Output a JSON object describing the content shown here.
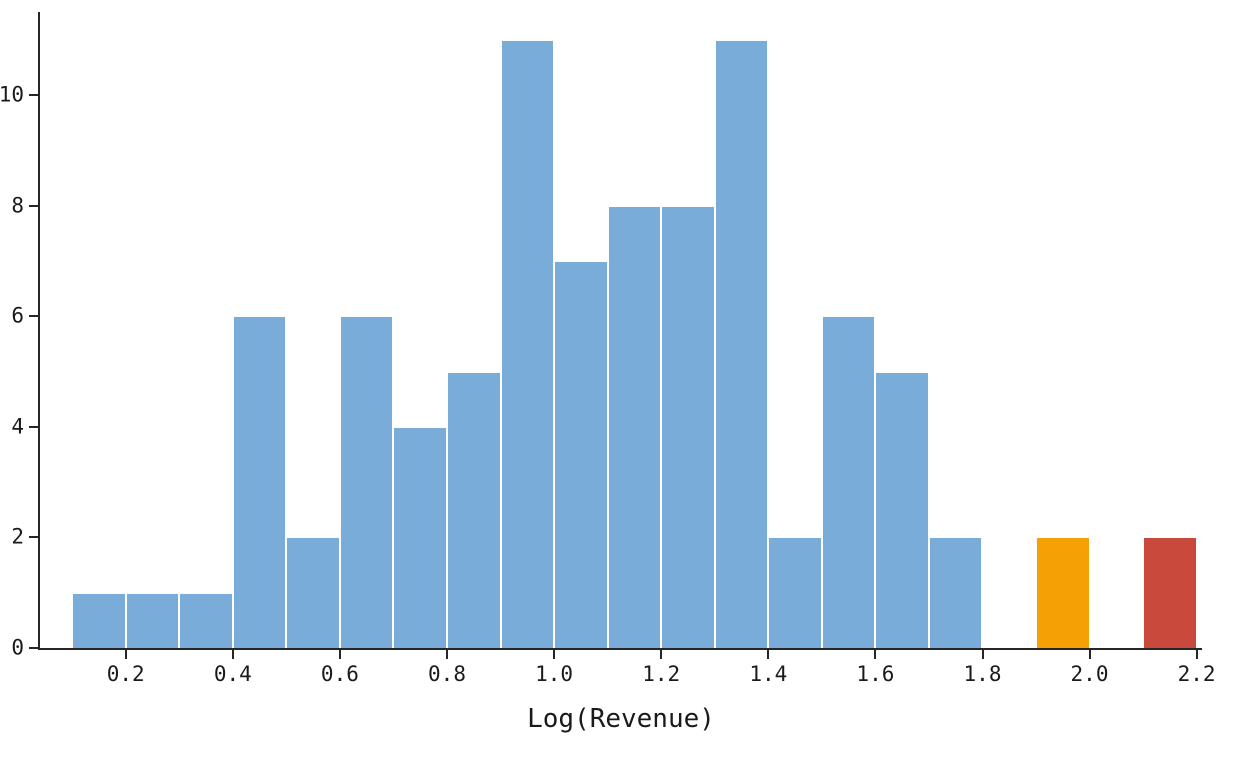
{
  "chart_data": {
    "type": "bar",
    "subtype": "histogram",
    "title": "",
    "xlabel": "Log(Revenue)",
    "ylabel": "",
    "xlim": [
      0.04,
      2.21
    ],
    "ylim": [
      0,
      11.5
    ],
    "grid": false,
    "legend": null,
    "background": "#ffffff",
    "axis_color": "#262626",
    "bar_edge_color": "#fdfdfd",
    "colors": {
      "default_blue": "#7AACD9",
      "highlight_orange": "#F5A004",
      "highlight_red": "#C94A3C"
    },
    "x_ticks": [
      {
        "value": 0.2,
        "label": "0.2"
      },
      {
        "value": 0.4,
        "label": "0.4"
      },
      {
        "value": 0.6,
        "label": "0.6"
      },
      {
        "value": 0.8,
        "label": "0.8"
      },
      {
        "value": 1.0,
        "label": "1.0"
      },
      {
        "value": 1.2,
        "label": "1.2"
      },
      {
        "value": 1.4,
        "label": "1.4"
      },
      {
        "value": 1.6,
        "label": "1.6"
      },
      {
        "value": 1.8,
        "label": "1.8"
      },
      {
        "value": 2.0,
        "label": "2.0"
      },
      {
        "value": 2.2,
        "label": "2.2"
      }
    ],
    "y_ticks": [
      {
        "value": 0,
        "label": "0"
      },
      {
        "value": 2,
        "label": "2"
      },
      {
        "value": 4,
        "label": "4"
      },
      {
        "value": 6,
        "label": "6"
      },
      {
        "value": 8,
        "label": "8"
      },
      {
        "value": 10,
        "label": "10"
      }
    ],
    "bars": [
      {
        "x0": 0.1,
        "x1": 0.2,
        "count": 1,
        "color": "#7AACD9"
      },
      {
        "x0": 0.2,
        "x1": 0.3,
        "count": 1,
        "color": "#7AACD9"
      },
      {
        "x0": 0.3,
        "x1": 0.4,
        "count": 1,
        "color": "#7AACD9"
      },
      {
        "x0": 0.4,
        "x1": 0.5,
        "count": 6,
        "color": "#7AACD9"
      },
      {
        "x0": 0.5,
        "x1": 0.6,
        "count": 2,
        "color": "#7AACD9"
      },
      {
        "x0": 0.6,
        "x1": 0.7,
        "count": 6,
        "color": "#7AACD9"
      },
      {
        "x0": 0.7,
        "x1": 0.8,
        "count": 4,
        "color": "#7AACD9"
      },
      {
        "x0": 0.8,
        "x1": 0.9,
        "count": 5,
        "color": "#7AACD9"
      },
      {
        "x0": 0.9,
        "x1": 1.0,
        "count": 11,
        "color": "#7AACD9"
      },
      {
        "x0": 1.0,
        "x1": 1.1,
        "count": 7,
        "color": "#7AACD9"
      },
      {
        "x0": 1.1,
        "x1": 1.2,
        "count": 8,
        "color": "#7AACD9"
      },
      {
        "x0": 1.2,
        "x1": 1.3,
        "count": 8,
        "color": "#7AACD9"
      },
      {
        "x0": 1.3,
        "x1": 1.4,
        "count": 11,
        "color": "#7AACD9"
      },
      {
        "x0": 1.4,
        "x1": 1.5,
        "count": 2,
        "color": "#7AACD9"
      },
      {
        "x0": 1.5,
        "x1": 1.6,
        "count": 6,
        "color": "#7AACD9"
      },
      {
        "x0": 1.6,
        "x1": 1.7,
        "count": 5,
        "color": "#7AACD9"
      },
      {
        "x0": 1.7,
        "x1": 1.8,
        "count": 2,
        "color": "#7AACD9"
      },
      {
        "x0": 1.8,
        "x1": 1.9,
        "count": 0,
        "color": "#7AACD9"
      },
      {
        "x0": 1.9,
        "x1": 2.0,
        "count": 2,
        "color": "#F5A004"
      },
      {
        "x0": 2.0,
        "x1": 2.1,
        "count": 0,
        "color": "#7AACD9"
      },
      {
        "x0": 2.1,
        "x1": 2.2,
        "count": 2,
        "color": "#C94A3C"
      }
    ]
  }
}
